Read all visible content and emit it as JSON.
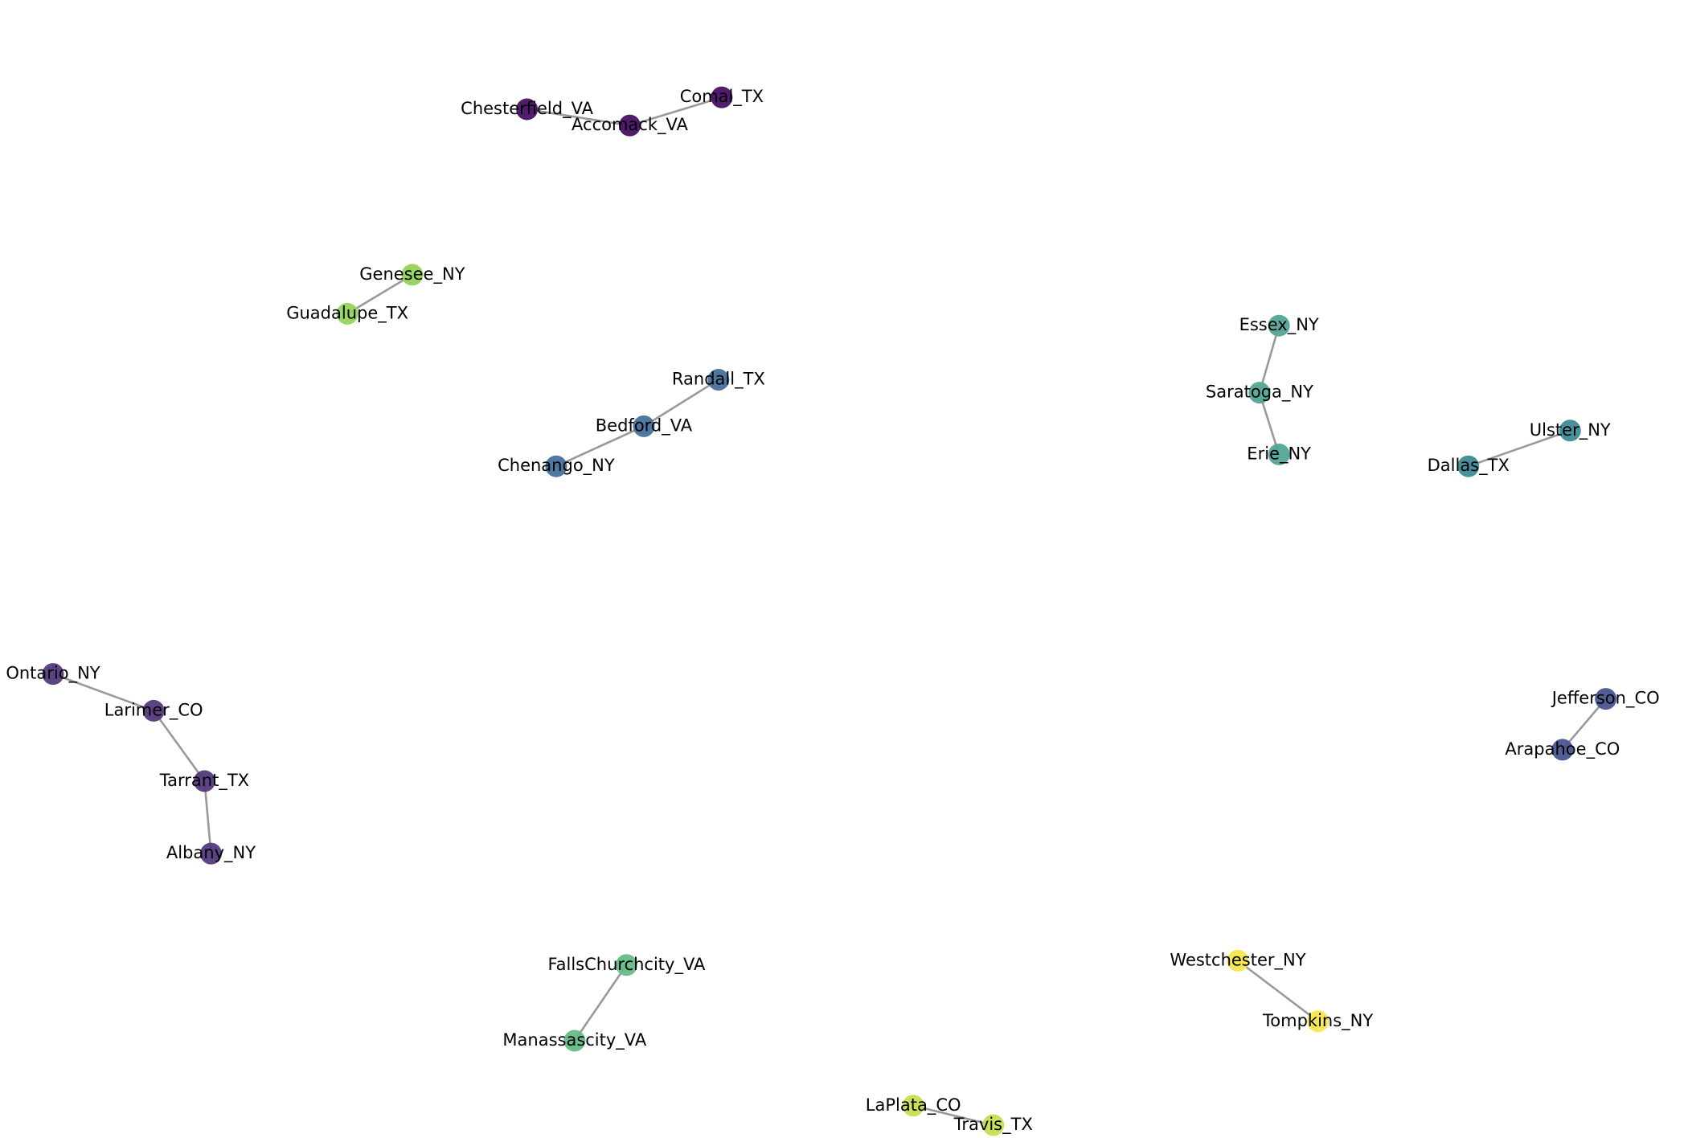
{
  "nodes": [
    {
      "label": "Chesterfield_VA",
      "color": "#471063"
    },
    {
      "label": "Accomack_VA",
      "color": "#471063"
    },
    {
      "label": "Comal_TX",
      "color": "#471063"
    },
    {
      "label": "Genesee_NY",
      "color": "#95d35a"
    },
    {
      "label": "Guadalupe_TX",
      "color": "#95d35a"
    },
    {
      "label": "Randall_TX",
      "color": "#46709a"
    },
    {
      "label": "Bedford_VA",
      "color": "#46709a"
    },
    {
      "label": "Chenango_NY",
      "color": "#46709a"
    },
    {
      "label": "Essex_NY",
      "color": "#52a596"
    },
    {
      "label": "Saratoga_NY",
      "color": "#52a596"
    },
    {
      "label": "Erie_NY",
      "color": "#52a596"
    },
    {
      "label": "Ulster_NY",
      "color": "#3e8b96"
    },
    {
      "label": "Dallas_TX",
      "color": "#3e8b96"
    },
    {
      "label": "Ontario_NY",
      "color": "#533a7e"
    },
    {
      "label": "Larimer_CO",
      "color": "#533a7e"
    },
    {
      "label": "Tarrant_TX",
      "color": "#533a7e"
    },
    {
      "label": "Albany_NY",
      "color": "#533a7e"
    },
    {
      "label": "Jefferson_CO",
      "color": "#4a5590"
    },
    {
      "label": "Arapahoe_CO",
      "color": "#4a5590"
    },
    {
      "label": "FallsChurchcity_VA",
      "color": "#67ba88"
    },
    {
      "label": "Manassascity_VA",
      "color": "#67ba88"
    },
    {
      "label": "Westchester_NY",
      "color": "#f6e64a"
    },
    {
      "label": "Tompkins_NY",
      "color": "#f6e64a"
    },
    {
      "label": "LaPlata_CO",
      "color": "#c5df52"
    },
    {
      "label": "Travis_TX",
      "color": "#c5df52"
    }
  ],
  "edges": [
    [
      0,
      1
    ],
    [
      1,
      2
    ],
    [
      3,
      4
    ],
    [
      5,
      6
    ],
    [
      6,
      7
    ],
    [
      8,
      9
    ],
    [
      9,
      10
    ],
    [
      11,
      12
    ],
    [
      13,
      14
    ],
    [
      14,
      15
    ],
    [
      15,
      16
    ],
    [
      17,
      18
    ],
    [
      19,
      20
    ],
    [
      21,
      22
    ],
    [
      23,
      24
    ]
  ]
}
